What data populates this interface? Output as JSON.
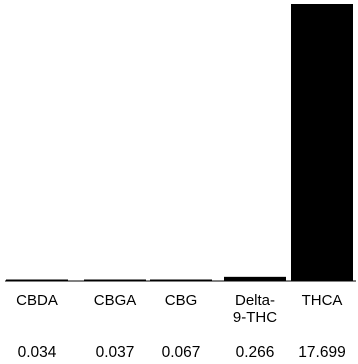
{
  "chart_data": {
    "type": "bar",
    "categories": [
      [
        "CBDA"
      ],
      [
        "CBGA"
      ],
      [
        "CBG"
      ],
      [
        "Delta-",
        "9-THC"
      ],
      [
        "THCA"
      ]
    ],
    "values": [
      0.034,
      0.037,
      0.067,
      0.266,
      17.699
    ],
    "value_labels": [
      "0.034",
      "0.037",
      "0.067",
      "0.266",
      "17.699"
    ],
    "ylim": [
      0,
      17.699
    ],
    "grid": false,
    "legend": "none",
    "bar_color": "#000000",
    "baseline_color": "#000000"
  }
}
